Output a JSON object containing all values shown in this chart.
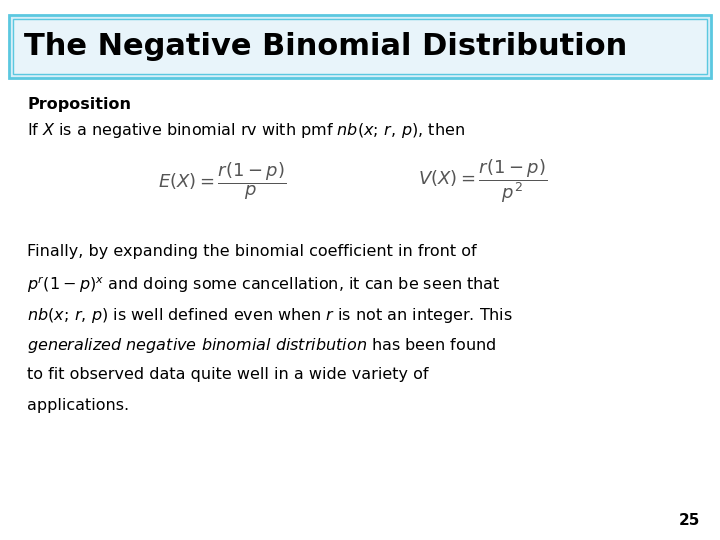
{
  "title": "The Negative Binomial Distribution",
  "title_bg_gradient_light": "#d6eef8",
  "title_bg_gradient_dark": "#b8dff0",
  "title_border_color": "#5bc8e0",
  "title_text_color": "#000000",
  "bg_color": "#ffffff",
  "proposition_label": "Proposition",
  "line1_plain": "If ",
  "line1_italic_X": "X",
  "line1_rest": " is a negative binomial rv with pmf ",
  "line1_italic_nb": "nb",
  "line1_args": "(x; r, p), then",
  "page_number": "25",
  "font_size_title": 22,
  "font_size_body": 11.5,
  "font_size_formula": 13,
  "font_size_proposition": 11.5,
  "font_size_page": 11
}
